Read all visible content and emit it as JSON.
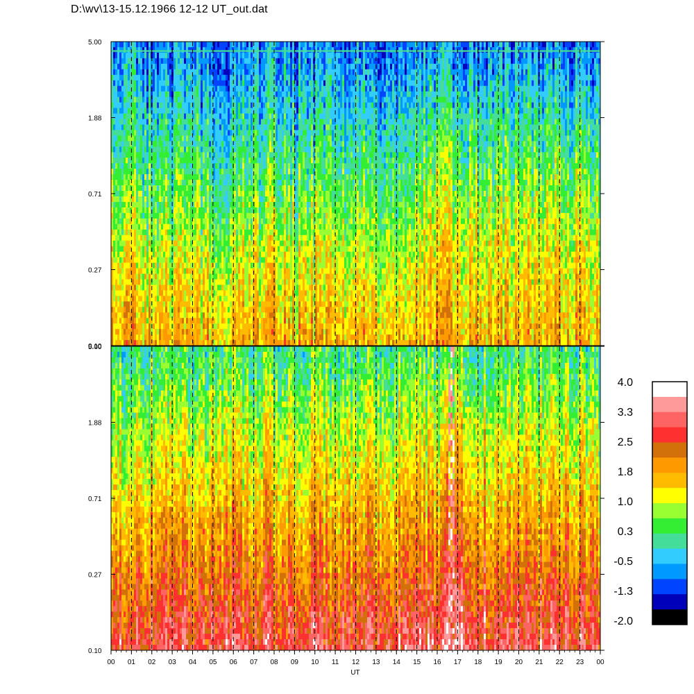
{
  "title": "D:\\wv\\13-15.12.1966  12-12 UT_out.dat",
  "chart_data": [
    {
      "type": "heatmap",
      "panel": "upper",
      "y_ticks": [
        "5.00",
        "1.88",
        "0.71",
        "0.27",
        "0.10"
      ],
      "ylim": [
        0.1,
        5.0
      ],
      "y_scale": "log",
      "x_range": [
        0,
        24
      ],
      "background_dominant": [
        "green",
        "yellow",
        "orange"
      ],
      "top_band": "blue"
    },
    {
      "type": "heatmap",
      "panel": "lower",
      "y_ticks": [
        "5.00",
        "1.88",
        "0.71",
        "0.27",
        "0.10"
      ],
      "ylim": [
        0.1,
        5.0
      ],
      "y_scale": "log",
      "x_range": [
        0,
        24
      ],
      "xlabel": "UT",
      "x_ticks": [
        "00",
        "01",
        "02",
        "03",
        "04",
        "05",
        "06",
        "07",
        "08",
        "09",
        "10",
        "11",
        "12",
        "13",
        "14",
        "15",
        "16",
        "17",
        "18",
        "19",
        "20",
        "21",
        "22",
        "23",
        "00"
      ],
      "background_dominant": [
        "orange",
        "red",
        "yellow"
      ],
      "top_band": "green"
    }
  ],
  "colorbar": {
    "labels": [
      "4.0",
      "3.3",
      "2.5",
      "1.8",
      "1.0",
      "0.3",
      "-0.5",
      "-1.3",
      "-2.0"
    ],
    "colors": [
      "#ffffff",
      "#ff9a9a",
      "#ff6464",
      "#ff3030",
      "#d2700a",
      "#ff9900",
      "#ffbb00",
      "#ffff00",
      "#99ff33",
      "#33ee33",
      "#44dd99",
      "#33ccff",
      "#0099ff",
      "#0044ff",
      "#0000bb",
      "#000000"
    ]
  },
  "palette": [
    "#000000",
    "#0000bb",
    "#0044ff",
    "#0099ff",
    "#33ccff",
    "#44dd99",
    "#33ee33",
    "#99ff33",
    "#ffff00",
    "#ffbb00",
    "#ff9900",
    "#d2700a",
    "#ff3030",
    "#ff6464",
    "#ff9a9a",
    "#ffffff"
  ]
}
